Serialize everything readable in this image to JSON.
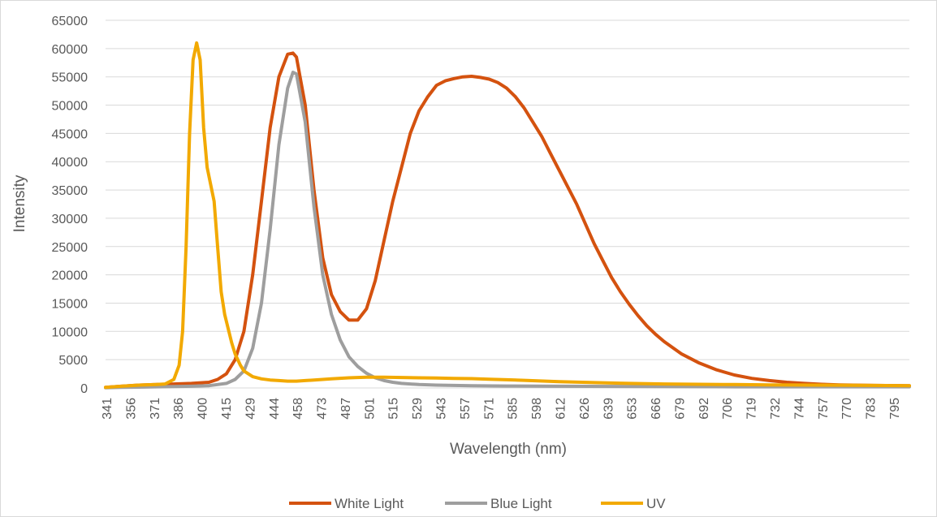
{
  "chart_data": {
    "type": "line",
    "title": "",
    "xlabel": "Wavelength (nm)",
    "ylabel": "Intensity",
    "xlim": [
      341,
      800
    ],
    "ylim": [
      0,
      65000
    ],
    "y_ticks": [
      0,
      5000,
      10000,
      15000,
      20000,
      25000,
      30000,
      35000,
      40000,
      45000,
      50000,
      55000,
      60000,
      65000
    ],
    "x_tick_labels": [
      "341",
      "356",
      "371",
      "386",
      "400",
      "415",
      "429",
      "444",
      "458",
      "473",
      "487",
      "501",
      "515",
      "529",
      "543",
      "557",
      "571",
      "585",
      "598",
      "612",
      "626",
      "639",
      "653",
      "666",
      "679",
      "692",
      "706",
      "719",
      "732",
      "744",
      "757",
      "770",
      "783",
      "795"
    ],
    "grid": "horizontal",
    "legend_position": "bottom",
    "series": [
      {
        "name": "White Light",
        "color": "#D4520F",
        "x": [
          341,
          350,
          360,
          370,
          380,
          390,
          400,
          405,
          410,
          415,
          420,
          425,
          430,
          435,
          440,
          445,
          448,
          450,
          455,
          460,
          465,
          470,
          475,
          480,
          485,
          490,
          495,
          500,
          505,
          510,
          515,
          520,
          525,
          530,
          535,
          540,
          545,
          550,
          555,
          560,
          565,
          570,
          575,
          580,
          585,
          590,
          595,
          600,
          605,
          610,
          615,
          620,
          625,
          630,
          635,
          640,
          645,
          650,
          655,
          660,
          670,
          680,
          690,
          700,
          710,
          720,
          730,
          740,
          750,
          760,
          780,
          800
        ],
        "y": [
          100,
          300,
          500,
          600,
          700,
          800,
          1000,
          1500,
          2500,
          5000,
          10000,
          20000,
          33000,
          46000,
          55000,
          59000,
          59200,
          58500,
          50000,
          35000,
          23000,
          16500,
          13500,
          12000,
          12000,
          14000,
          19000,
          26000,
          33000,
          39000,
          45000,
          49000,
          51500,
          53500,
          54300,
          54700,
          55000,
          55100,
          54900,
          54600,
          54000,
          53000,
          51500,
          49500,
          47000,
          44500,
          41500,
          38500,
          35500,
          32500,
          29000,
          25500,
          22500,
          19500,
          17000,
          14800,
          12800,
          11000,
          9500,
          8200,
          6000,
          4400,
          3200,
          2300,
          1700,
          1300,
          1000,
          800,
          650,
          550,
          450,
          400
        ]
      },
      {
        "name": "Blue Light",
        "color": "#9E9E9E",
        "x": [
          341,
          350,
          360,
          370,
          380,
          390,
          400,
          410,
          415,
          420,
          425,
          430,
          435,
          440,
          445,
          448,
          450,
          455,
          460,
          465,
          470,
          475,
          480,
          485,
          490,
          495,
          500,
          505,
          510,
          520,
          530,
          550,
          570,
          600,
          650,
          700,
          750,
          800
        ],
        "y": [
          50,
          100,
          150,
          200,
          250,
          300,
          400,
          800,
          1500,
          3000,
          7000,
          15000,
          28000,
          43000,
          53000,
          55800,
          55500,
          47000,
          32000,
          20000,
          13000,
          8500,
          5500,
          3800,
          2600,
          1800,
          1300,
          1000,
          800,
          600,
          500,
          400,
          350,
          300,
          250,
          200,
          200,
          200
        ]
      },
      {
        "name": "UV",
        "color": "#F2A900",
        "x": [
          341,
          350,
          360,
          370,
          375,
          380,
          383,
          385,
          387,
          389,
          391,
          393,
          395,
          397,
          399,
          401,
          403,
          405,
          407,
          409,
          411,
          413,
          415,
          418,
          420,
          425,
          430,
          435,
          440,
          445,
          450,
          455,
          460,
          470,
          480,
          490,
          500,
          510,
          520,
          530,
          540,
          550,
          560,
          570,
          580,
          600,
          620,
          640,
          660,
          680,
          700,
          720,
          750,
          780,
          800
        ],
        "y": [
          100,
          300,
          500,
          600,
          700,
          1500,
          4000,
          10000,
          25000,
          45000,
          58000,
          61000,
          58000,
          46000,
          39000,
          36000,
          33000,
          25000,
          17000,
          13000,
          10500,
          8000,
          6000,
          4000,
          3000,
          2000,
          1600,
          1400,
          1300,
          1200,
          1200,
          1300,
          1400,
          1600,
          1800,
          1900,
          1900,
          1850,
          1800,
          1750,
          1700,
          1650,
          1550,
          1450,
          1350,
          1100,
          950,
          800,
          700,
          650,
          600,
          550,
          500,
          450,
          400
        ]
      }
    ]
  }
}
